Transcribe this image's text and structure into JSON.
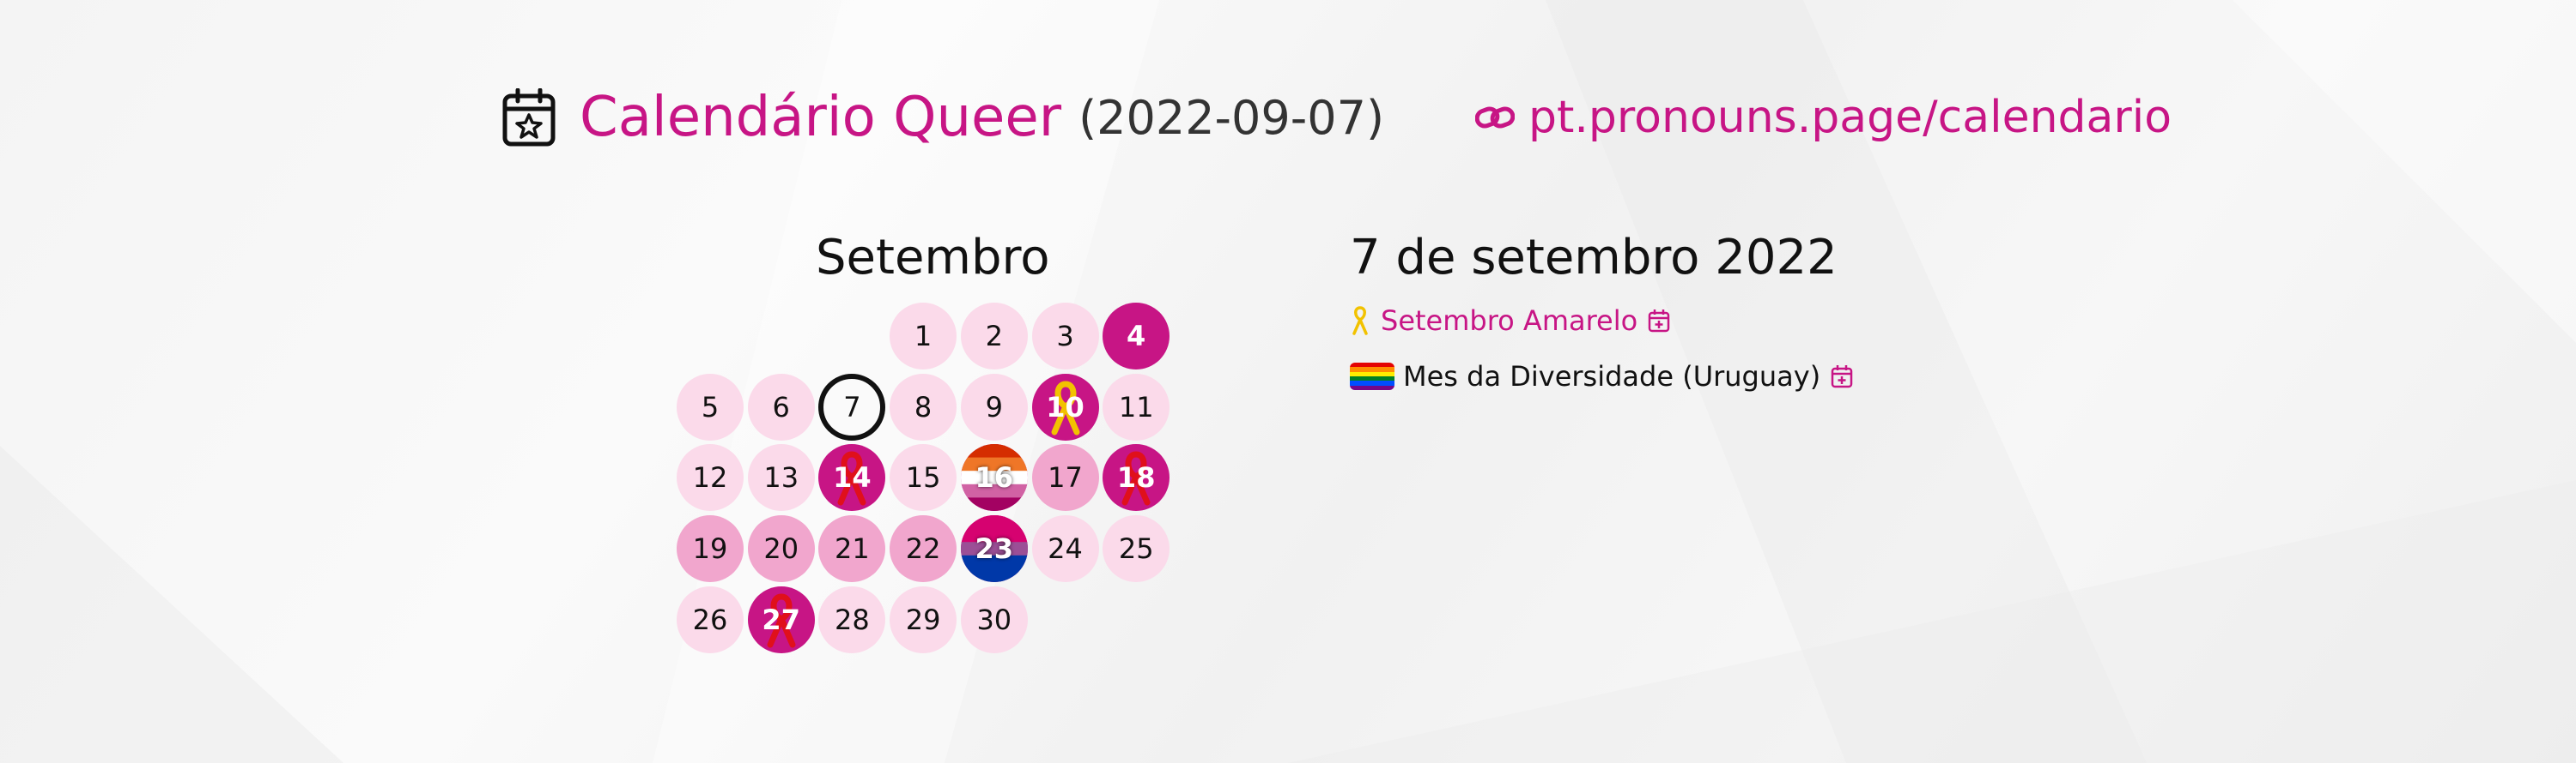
{
  "header": {
    "title": "Calendário Queer",
    "date": "(2022-09-07)",
    "site_url": "pt.pronouns.page/calendario",
    "icons": {
      "calendar": "calendar-star-icon",
      "logo": "pronouns-page-logo-icon"
    },
    "accent_color": "#c71585"
  },
  "calendar": {
    "month": "Setembro",
    "today": "7",
    "days": [
      {
        "label": "1",
        "level": 1
      },
      {
        "label": "2",
        "level": 1
      },
      {
        "label": "3",
        "level": 1
      },
      {
        "label": "4",
        "level": 3
      },
      {
        "label": "5",
        "level": 1
      },
      {
        "label": "6",
        "level": 1
      },
      {
        "label": "7",
        "level": 1
      },
      {
        "label": "8",
        "level": 1
      },
      {
        "label": "9",
        "level": 1
      },
      {
        "label": "10",
        "level": 3,
        "icon": "yellow-ribbon-icon"
      },
      {
        "label": "11",
        "level": 1
      },
      {
        "label": "12",
        "level": 1
      },
      {
        "label": "13",
        "level": 1
      },
      {
        "label": "14",
        "level": 3,
        "icon": "red-ribbon-icon"
      },
      {
        "label": "15",
        "level": 1
      },
      {
        "label": "16",
        "level": 3,
        "icon": "lesbian-flag-icon"
      },
      {
        "label": "17",
        "level": 2
      },
      {
        "label": "18",
        "level": 3,
        "icon": "red-ribbon-icon"
      },
      {
        "label": "19",
        "level": 2
      },
      {
        "label": "20",
        "level": 2
      },
      {
        "label": "21",
        "level": 2
      },
      {
        "label": "22",
        "level": 2
      },
      {
        "label": "23",
        "level": 3,
        "icon": "bisexual-flag-icon"
      },
      {
        "label": "24",
        "level": 1
      },
      {
        "label": "25",
        "level": 1
      },
      {
        "label": "26",
        "level": 1
      },
      {
        "label": "27",
        "level": 3,
        "icon": "red-ribbon-icon"
      },
      {
        "label": "28",
        "level": 1
      },
      {
        "label": "29",
        "level": 1
      },
      {
        "label": "30",
        "level": 1
      }
    ],
    "colors": {
      "light": "#fbdaea",
      "medium": "#f1a6cd",
      "strong": "#c71585"
    }
  },
  "events": {
    "date_heading": "7 de setembro 2022",
    "items": [
      {
        "label": "Setembro Amarelo",
        "icon": "yellow-ribbon-icon",
        "linked": true
      },
      {
        "label": "Mes da Diversidade (Uruguay)",
        "icon": "rainbow-flag-icon",
        "linked": false
      }
    ]
  }
}
